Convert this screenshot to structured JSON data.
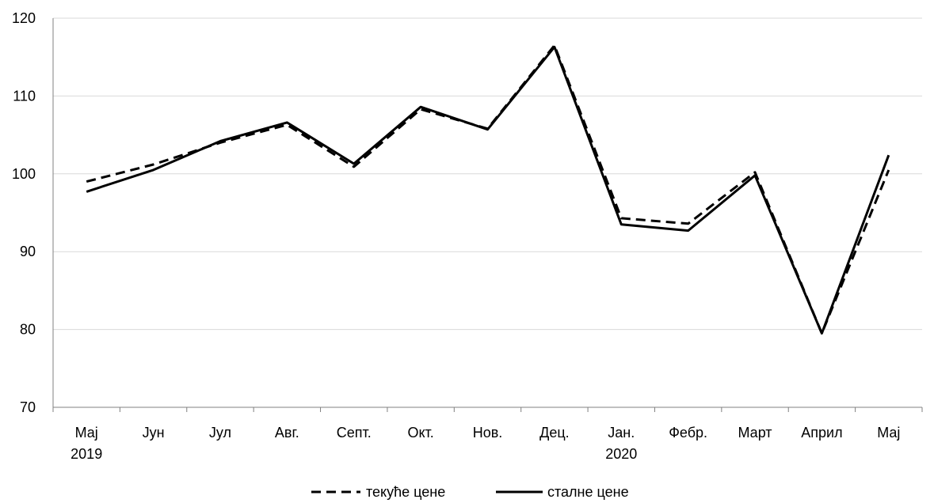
{
  "chart_data": {
    "type": "line",
    "categories": [
      [
        "Мај",
        "2019"
      ],
      [
        "Јун",
        ""
      ],
      [
        "Јул",
        ""
      ],
      [
        "Авг.",
        ""
      ],
      [
        "Септ.",
        ""
      ],
      [
        "Окт.",
        ""
      ],
      [
        "Нов.",
        ""
      ],
      [
        "Дец.",
        ""
      ],
      [
        "Јан.",
        "2020"
      ],
      [
        "Фебр.",
        ""
      ],
      [
        "Март",
        ""
      ],
      [
        "Април",
        ""
      ],
      [
        "Мај",
        ""
      ]
    ],
    "series": [
      {
        "name": "текуће цене",
        "style": "dashed",
        "color": "#000000",
        "values": [
          99.0,
          101.2,
          104.0,
          106.3,
          100.9,
          108.3,
          105.8,
          116.5,
          94.3,
          93.6,
          100.2,
          79.5,
          100.5
        ]
      },
      {
        "name": "сталне цене",
        "style": "solid",
        "color": "#000000",
        "values": [
          97.7,
          100.5,
          104.2,
          106.6,
          101.3,
          108.6,
          105.7,
          116.3,
          93.5,
          92.7,
          99.8,
          79.5,
          102.4
        ]
      }
    ],
    "title": "",
    "xlabel": "",
    "ylabel": "",
    "ylim": [
      70,
      120
    ],
    "yticks": [
      70,
      80,
      90,
      100,
      110,
      120
    ],
    "grid": true,
    "legend_position": "bottom-center",
    "gridline_color": "#d9d9d9",
    "axis_color": "#808080"
  }
}
